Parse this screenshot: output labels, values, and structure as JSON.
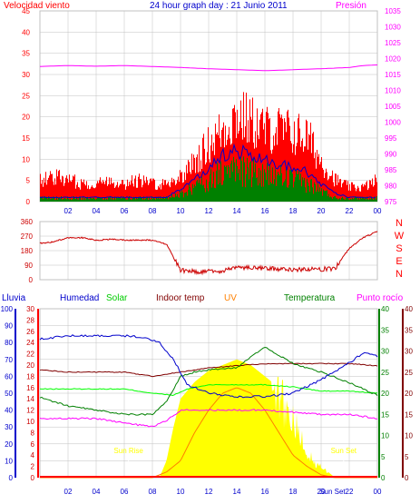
{
  "header": {
    "wind_label": "Velocidad viento",
    "title": "24 hour graph day : 21 Junio 2011",
    "pressure_label": "Presión"
  },
  "bottom_labels": {
    "lluvia": "Lluvia",
    "humedad": "Humedad",
    "solar": "Solar",
    "indoor": "Indoor temp",
    "uv": "UV",
    "temperatura": "Temperatura",
    "punto_rocio": "Punto rocío"
  },
  "direction_letters": [
    "N",
    "W",
    "S",
    "E",
    "N"
  ],
  "sun_rise_label": "Sun Rise",
  "sun_set_label": "Sun Set",
  "colors": {
    "wind_gust": "#ff0000",
    "wind_avg": "#008000",
    "wind_mean": "#0000cc",
    "pressure": "#ff00ff",
    "direction": "#cc0000",
    "humidity": "#0000cc",
    "solar": "#00ff00",
    "solar_fill": "#ffff00",
    "indoor": "#800000",
    "uv": "#ff8000",
    "temperature": "#008000",
    "dew_point": "#ff00ff",
    "rain_axis": "#0000cc",
    "grid": "#c0c0c0"
  },
  "chart_data": [
    {
      "type": "line",
      "panel": "wind-pressure",
      "x_ticks": [
        "02",
        "04",
        "06",
        "08",
        "10",
        "12",
        "14",
        "16",
        "18",
        "20",
        "22",
        "00"
      ],
      "y_left": {
        "ticks": [
          "0",
          "5",
          "10",
          "15",
          "20",
          "25",
          "30",
          "35",
          "40",
          "45"
        ],
        "range": [
          0,
          45
        ]
      },
      "y_right": {
        "ticks": [
          "975",
          "980",
          "985",
          "990",
          "995",
          "1000",
          "1005",
          "1010",
          "1015",
          "1020",
          "1025",
          "1030",
          "1035"
        ],
        "range": [
          975,
          1035
        ]
      },
      "series": [
        {
          "role": "gust",
          "x": [
            0,
            1,
            2,
            3,
            4,
            5,
            6,
            7,
            8,
            9,
            10,
            11,
            12,
            13,
            14,
            15,
            16,
            17,
            18,
            19,
            20,
            21,
            22,
            23,
            24
          ],
          "values": [
            6,
            7,
            6,
            5,
            5,
            6,
            5,
            6,
            5,
            5,
            7,
            11,
            16,
            20,
            24,
            22,
            20,
            20,
            19,
            18,
            11,
            6,
            4,
            4,
            6
          ]
        },
        {
          "role": "mean",
          "x": [
            0,
            1,
            2,
            3,
            4,
            5,
            6,
            7,
            8,
            9,
            10,
            11,
            12,
            13,
            14,
            15,
            16,
            17,
            18,
            19,
            20,
            21,
            22,
            23,
            24
          ],
          "values": [
            1,
            1,
            1,
            1,
            1,
            1,
            1,
            1,
            1,
            1,
            3,
            5,
            8,
            11,
            12,
            11,
            10,
            9,
            8,
            7,
            4,
            2,
            1,
            1,
            1
          ]
        },
        {
          "role": "avg",
          "x": [
            0,
            1,
            2,
            3,
            4,
            5,
            6,
            7,
            8,
            9,
            10,
            11,
            12,
            13,
            14,
            15,
            16,
            17,
            18,
            19,
            20,
            21,
            22,
            23,
            24
          ],
          "values": [
            1,
            1,
            1,
            1,
            1,
            1,
            1,
            1,
            1,
            1,
            2,
            4,
            6,
            8,
            9,
            8,
            7,
            7,
            6,
            5,
            3,
            1,
            1,
            1,
            1
          ]
        },
        {
          "role": "pressure",
          "x": [
            0,
            2,
            4,
            6,
            8,
            10,
            12,
            14,
            16,
            18,
            20,
            22,
            23,
            24
          ],
          "values": [
            1017.5,
            1017.8,
            1017.6,
            1017.8,
            1017.5,
            1017.2,
            1016.8,
            1016.5,
            1016.2,
            1016.5,
            1016.8,
            1017.2,
            1017.8,
            1018.0
          ]
        }
      ]
    },
    {
      "type": "line",
      "panel": "wind-direction",
      "y_ticks": [
        "0",
        "90",
        "180",
        "270",
        "360"
      ],
      "range": [
        0,
        360
      ],
      "series": [
        {
          "role": "direction",
          "x": [
            0,
            1,
            2,
            3,
            4,
            5,
            6,
            7,
            8,
            9,
            10,
            11,
            12,
            13,
            14,
            15,
            16,
            17,
            18,
            19,
            20,
            21,
            22,
            23,
            24
          ],
          "values": [
            225,
            235,
            260,
            260,
            245,
            250,
            245,
            245,
            245,
            220,
            60,
            50,
            50,
            55,
            75,
            75,
            70,
            65,
            60,
            65,
            65,
            70,
            195,
            260,
            300
          ]
        }
      ]
    },
    {
      "type": "line",
      "panel": "weather-conditions",
      "x_ticks": [
        "02",
        "04",
        "06",
        "08",
        "10",
        "12",
        "14",
        "16",
        "18",
        "20",
        "22",
        "00"
      ],
      "x_extra_label": "Sun Set",
      "y_rain": {
        "ticks": [
          "0",
          "10",
          "20",
          "30",
          "40",
          "50",
          "60",
          "70",
          "80",
          "90",
          "100"
        ],
        "range": [
          0,
          100
        ]
      },
      "y_solar": {
        "ticks": [
          "0",
          "2",
          "4",
          "6",
          "8",
          "10",
          "12",
          "14",
          "16",
          "18",
          "20",
          "22",
          "24",
          "26",
          "28",
          "30"
        ],
        "range": [
          0,
          30
        ]
      },
      "y_temp": {
        "ticks": [
          "0",
          "5",
          "10",
          "15",
          "20",
          "25",
          "30",
          "35",
          "40"
        ],
        "range": [
          0,
          40
        ]
      },
      "series": [
        {
          "role": "humidity",
          "x": [
            0,
            2,
            4,
            6,
            7.5,
            8.5,
            9.5,
            10.5,
            12,
            14,
            16,
            18,
            20,
            22,
            23,
            24
          ],
          "values": [
            82,
            84,
            84,
            84,
            83,
            80,
            70,
            55,
            50,
            48,
            48,
            50,
            58,
            68,
            74,
            72
          ]
        },
        {
          "role": "indoor",
          "x": [
            0,
            2,
            4,
            6,
            8,
            10,
            12,
            14,
            16,
            18,
            20,
            22,
            24
          ],
          "values": [
            25.5,
            25,
            25,
            25,
            24,
            25,
            26,
            26.5,
            27,
            27,
            27,
            27,
            26.5
          ]
        },
        {
          "role": "solar_line",
          "x": [
            0,
            2,
            4,
            6,
            8,
            9.5,
            10.5,
            12,
            14,
            16,
            18,
            20,
            22,
            24
          ],
          "values": [
            21,
            21,
            21,
            21,
            20,
            19.5,
            21,
            22,
            22,
            22,
            21.5,
            20.5,
            20.5,
            20
          ]
        },
        {
          "role": "temperature",
          "x": [
            0,
            2,
            4,
            6,
            8,
            9,
            10,
            11,
            12,
            14,
            16,
            18,
            20,
            22,
            24
          ],
          "values": [
            19,
            17,
            16,
            15,
            15,
            18,
            24,
            25,
            25.5,
            26,
            31,
            27,
            25,
            22.5,
            19.5
          ]
        },
        {
          "role": "dew_point",
          "x": [
            0,
            2,
            4,
            6,
            8,
            9,
            10,
            12,
            14,
            16,
            18,
            20,
            22,
            24
          ],
          "values": [
            14,
            14,
            14,
            13,
            12,
            13.5,
            16,
            16,
            16,
            16,
            15.5,
            15,
            15,
            14
          ]
        },
        {
          "role": "solar_radiation",
          "x": [
            0,
            7,
            8.5,
            9,
            9.5,
            10,
            11,
            12,
            13,
            14,
            15,
            16,
            17,
            18,
            18.5,
            19.5,
            20.5,
            21,
            24
          ],
          "values": [
            0,
            0,
            0,
            3,
            9,
            14,
            17,
            19,
            20,
            21,
            20,
            18,
            16,
            11,
            8,
            3,
            1,
            0,
            0
          ]
        },
        {
          "role": "uv",
          "x": [
            0,
            8,
            9,
            10,
            11,
            12,
            13,
            14,
            15,
            16,
            17,
            18,
            19,
            20,
            21,
            24
          ],
          "values": [
            0,
            0,
            1,
            3,
            8,
            12,
            15,
            16,
            15,
            12,
            8,
            4,
            2,
            0.5,
            0,
            0
          ]
        }
      ]
    }
  ]
}
